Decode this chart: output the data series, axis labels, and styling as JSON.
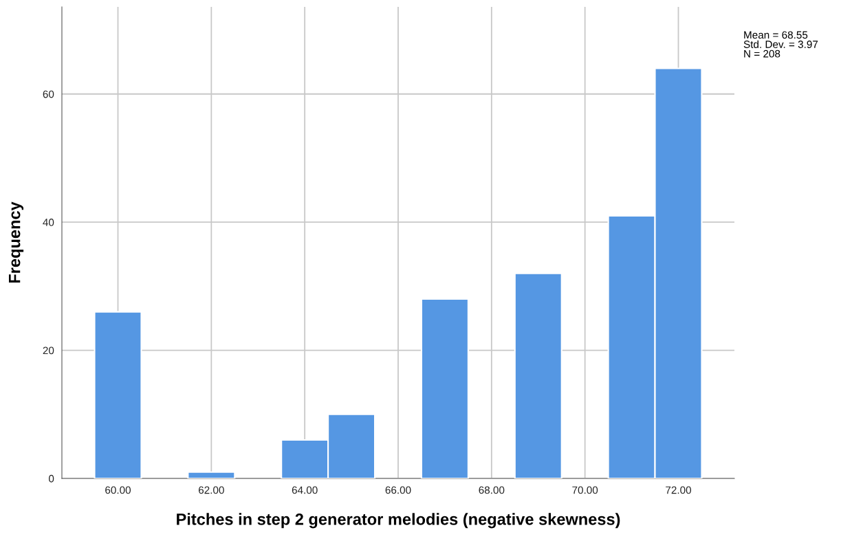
{
  "chart_data": {
    "type": "histogram",
    "xlabel": "Pitches in step 2 generator melodies (negative skewness)",
    "ylabel": "Frequency",
    "bins": [
      59.5,
      60.5,
      61.5,
      62.5,
      63.5,
      64.5,
      65.5,
      66.5,
      67.5,
      68.5,
      69.5,
      70.5,
      71.5,
      72.5
    ],
    "values": [
      26,
      0,
      1,
      0,
      6,
      10,
      0,
      28,
      0,
      32,
      0,
      41,
      64
    ],
    "color": "#5597e3",
    "xlim": [
      58.8,
      73.2
    ],
    "ylim": [
      0,
      73.6
    ],
    "xticks": [
      {
        "value": 60,
        "label": "60.00"
      },
      {
        "value": 62,
        "label": "62.00"
      },
      {
        "value": 64,
        "label": "64.00"
      },
      {
        "value": 66,
        "label": "66.00"
      },
      {
        "value": 68,
        "label": "68.00"
      },
      {
        "value": 70,
        "label": "70.00"
      },
      {
        "value": 72,
        "label": "72.00"
      }
    ],
    "yticks": [
      0,
      20,
      40,
      60
    ],
    "grid": true,
    "annotations": [
      "Mean = 68.55\nStd. Dev. = 3.97\nN = 208"
    ]
  }
}
